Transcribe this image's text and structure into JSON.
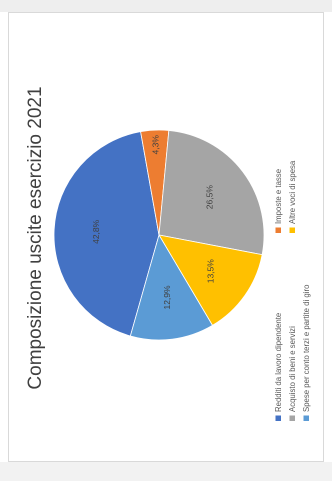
{
  "chart_data": {
    "type": "pie",
    "title": "Composizione uscite esercizio 2021",
    "categories": [
      "Redditi da lavoro dipendente",
      "Imposte e tasse",
      "Acquisto di beni e servizi",
      "Altre voci di spesa",
      "Spese per conto terzi e partite di giro"
    ],
    "values": [
      42.8,
      4.3,
      26.5,
      13.5,
      12.9
    ],
    "value_labels": [
      "42,8%",
      "4,3%",
      "26,5%",
      "13,5%",
      "12,9%"
    ],
    "colors": [
      "#4472c4",
      "#ed7d31",
      "#a5a5a5",
      "#ffc000",
      "#5b9bd5"
    ],
    "legend_position": "bottom",
    "rotation": "page rotated 90 degrees counter-clockwise"
  }
}
